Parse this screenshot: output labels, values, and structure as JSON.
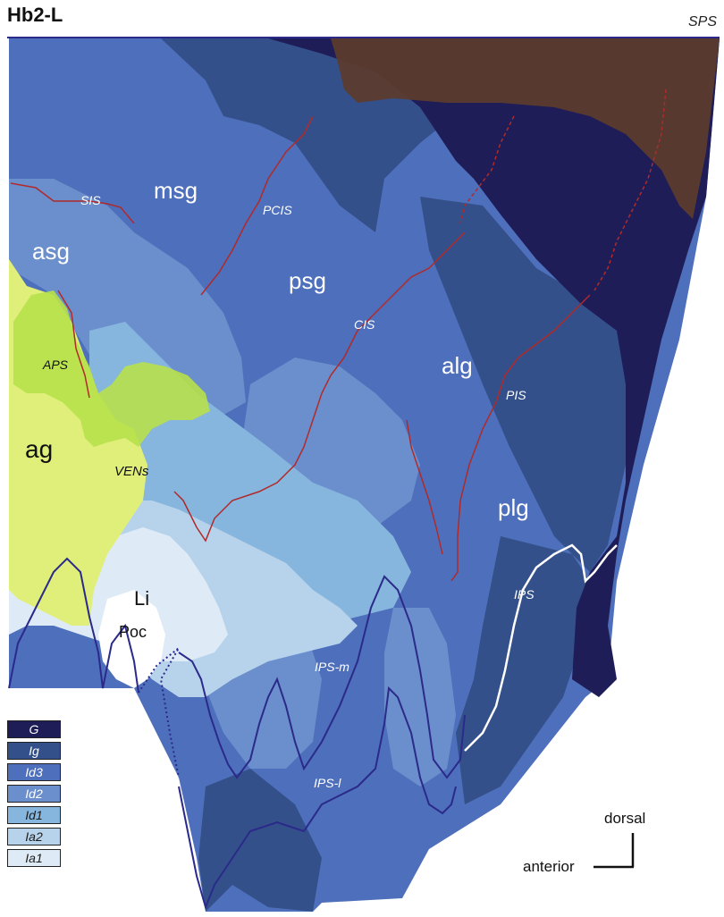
{
  "title": "Hb2-L",
  "corner_label": "SPS",
  "region_labels": {
    "msg": "msg",
    "asg": "asg",
    "psg": "psg",
    "alg": "alg",
    "ag": "ag",
    "plg": "plg",
    "li": "Li",
    "poc": "Poc"
  },
  "sulcus_labels": {
    "sis": "SIS",
    "pcis": "PCIS",
    "cis": "CIS",
    "aps": "APS",
    "pis": "PIS",
    "vens": "VENs",
    "ips": "IPS",
    "ips_m": "IPS-m",
    "ips_l": "IPS-l"
  },
  "legend": [
    {
      "label": "G",
      "color": "#1f1d57",
      "text_color": "#ffffff"
    },
    {
      "label": "Ig",
      "color": "#34508a",
      "text_color": "#ffffff"
    },
    {
      "label": "Id3",
      "color": "#4e6fbb",
      "text_color": "#ffffff"
    },
    {
      "label": "Id2",
      "color": "#6b8fcc",
      "text_color": "#ffffff"
    },
    {
      "label": "Id1",
      "color": "#86b5dd",
      "text_color": "#1a1a1a"
    },
    {
      "label": "Ia2",
      "color": "#b7d3ec",
      "text_color": "#1a1a1a"
    },
    {
      "label": "Ia1",
      "color": "#deebf7",
      "text_color": "#1a1a1a"
    }
  ],
  "orientation": {
    "dorsal": "dorsal",
    "anterior": "anterior"
  },
  "colors": {
    "G": "#1f1d57",
    "Ig": "#34508a",
    "Id3": "#4e6fbb",
    "Id2": "#6b8fcc",
    "Id1": "#86b5dd",
    "Ia2": "#b7d3ec",
    "Ia1": "#deebf7",
    "agranular_yellow": "#e0ef7a",
    "ven_green": "#b7e04a",
    "sps_brown": "#5c3c2c",
    "sulcus_red": "#b02a2a",
    "outline_navy": "#2b2a8a"
  }
}
